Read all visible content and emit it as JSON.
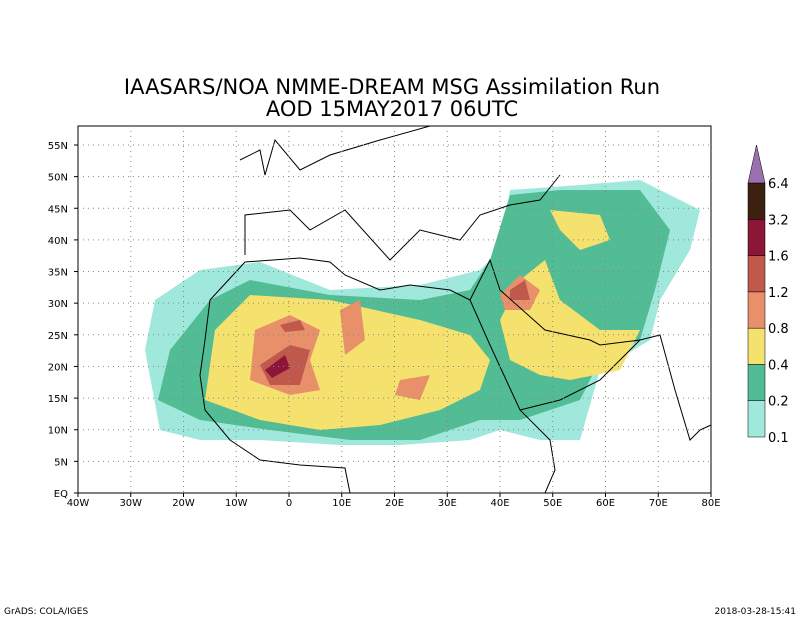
{
  "title": [
    "IAASARS/NOA NMME-DREAM MSG Assimilation Run",
    "AOD  15MAY2017 06UTC"
  ],
  "lat_labels": [
    "EQ",
    "5N",
    "10N",
    "15N",
    "20N",
    "25N",
    "30N",
    "35N",
    "40N",
    "45N",
    "50N",
    "55N"
  ],
  "lon_labels": [
    "40W",
    "30W",
    "20W",
    "10W",
    "0",
    "10E",
    "20E",
    "30E",
    "40E",
    "50E",
    "60E",
    "70E",
    "80E"
  ],
  "colorbar": {
    "levels": [
      0.1,
      0.2,
      0.4,
      0.8,
      1.2,
      1.6,
      3.2,
      6.4
    ],
    "colors": [
      "#a0e8dc",
      "#52bc94",
      "#f5e16e",
      "#e8906a",
      "#c0584c",
      "#8c1638",
      "#3c2010",
      "#9a70b0"
    ]
  },
  "footer_left": "GrADS: COLA/IGES",
  "footer_right": "2018-03-28-15:41"
}
